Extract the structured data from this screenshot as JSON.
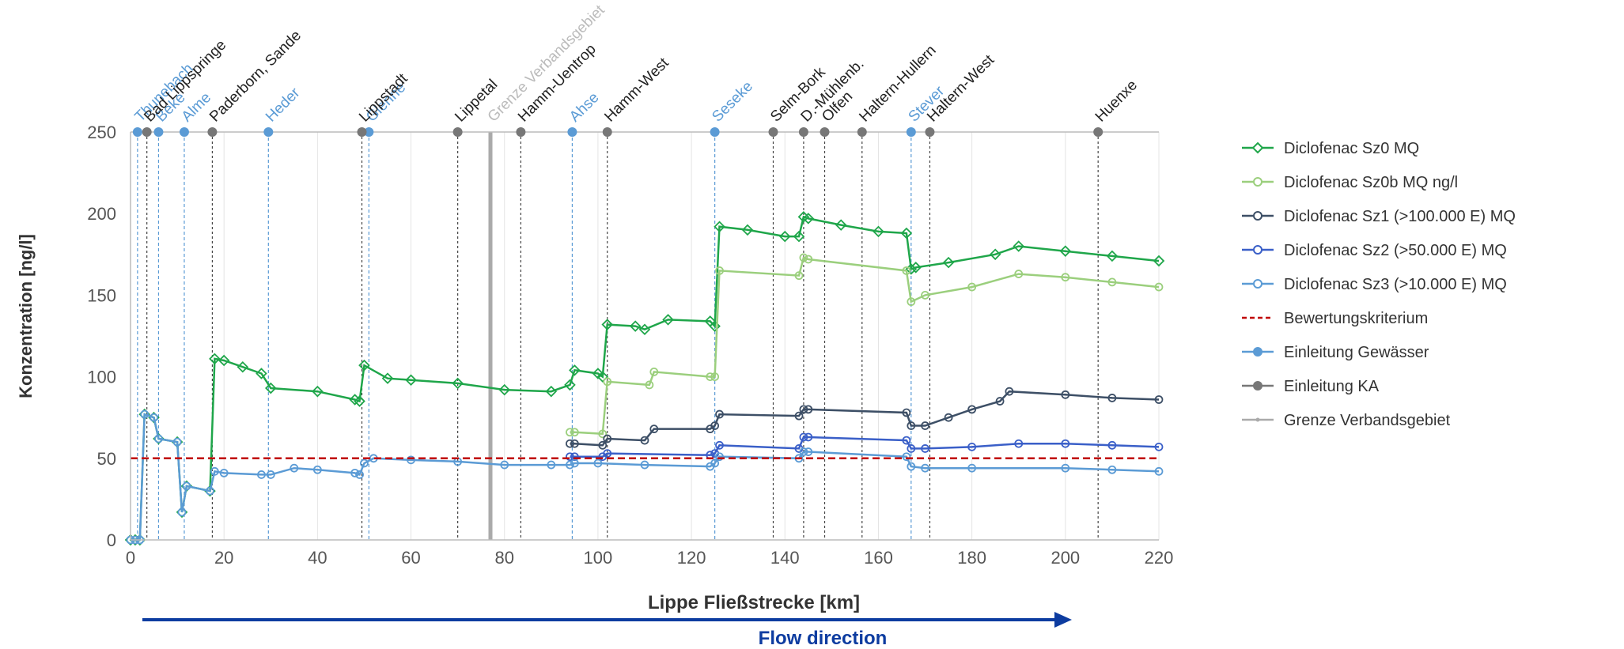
{
  "chart_data": {
    "type": "line",
    "title": "",
    "xlabel": "Lippe Fließstrecke [km]",
    "ylabel": "Konzentration [ng/l]",
    "xlim": [
      0,
      220
    ],
    "ylim": [
      0,
      250
    ],
    "xticks": [
      "0",
      "20",
      "40",
      "60",
      "80",
      "100",
      "120",
      "140",
      "160",
      "180",
      "200",
      "220"
    ],
    "yticks": [
      "0",
      "50",
      "100",
      "150",
      "200",
      "250"
    ],
    "grid": "vertical",
    "legend_position": "right",
    "flow_label": "Flow direction",
    "series": [
      {
        "name": "Diclofenac Sz0 MQ",
        "color": "#1fa64a",
        "x": [
          0,
          1,
          2,
          3,
          5,
          6,
          10,
          11,
          12,
          17,
          18,
          20,
          24,
          28,
          30,
          40,
          48,
          49,
          50,
          55,
          60,
          70,
          80,
          90,
          94,
          95,
          100,
          101,
          102,
          108,
          110,
          115,
          124,
          125,
          126,
          132,
          140,
          143,
          144,
          145,
          152,
          160,
          166,
          167,
          168,
          175,
          185,
          190,
          200,
          210,
          220
        ],
        "y": [
          0,
          0,
          0,
          77,
          75,
          62,
          60,
          17,
          33,
          30,
          111,
          110,
          106,
          102,
          93,
          91,
          86,
          85,
          107,
          99,
          98,
          96,
          92,
          91,
          95,
          104,
          102,
          100,
          132,
          131,
          129,
          135,
          134,
          131,
          192,
          190,
          186,
          186,
          198,
          197,
          193,
          189,
          188,
          166,
          167,
          170,
          175,
          180,
          177,
          174,
          171
        ]
      },
      {
        "name": "Diclofenac Sz0b MQ ng/l",
        "color": "#9bcf7d",
        "x": [
          94,
          95,
          101,
          102,
          111,
          112,
          124,
          125,
          126,
          143,
          144,
          145,
          166,
          167,
          170,
          180,
          190,
          200,
          210,
          220
        ],
        "y": [
          66,
          66,
          65,
          97,
          95,
          103,
          100,
          100,
          165,
          162,
          173,
          172,
          165,
          146,
          150,
          155,
          163,
          161,
          158,
          155
        ]
      },
      {
        "name": "Diclofenac Sz1 (>100.000 E) MQ",
        "color": "#3d4f66",
        "x": [
          94,
          95,
          101,
          102,
          110,
          112,
          124,
          125,
          126,
          143,
          144,
          145,
          166,
          167,
          170,
          175,
          180,
          186,
          188,
          200,
          210,
          220
        ],
        "y": [
          59,
          59,
          58,
          62,
          61,
          68,
          68,
          70,
          77,
          76,
          80,
          80,
          78,
          70,
          70,
          75,
          80,
          85,
          91,
          89,
          87,
          86
        ]
      },
      {
        "name": "Diclofenac Sz2 (>50.000 E) MQ",
        "color": "#3a5fc8",
        "x": [
          94,
          95,
          101,
          102,
          124,
          125,
          126,
          143,
          144,
          145,
          166,
          167,
          170,
          180,
          190,
          200,
          210,
          220
        ],
        "y": [
          51,
          51,
          51,
          53,
          52,
          53,
          58,
          56,
          63,
          63,
          61,
          56,
          56,
          57,
          59,
          59,
          58,
          57
        ]
      },
      {
        "name": "Diclofenac Sz3 (>10.000 E) MQ",
        "color": "#5b9bd5",
        "x": [
          0,
          1,
          2,
          3,
          5,
          6,
          10,
          11,
          12,
          17,
          18,
          20,
          28,
          30,
          35,
          40,
          48,
          49,
          50,
          52,
          60,
          70,
          80,
          90,
          94,
          95,
          100,
          110,
          124,
          125,
          126,
          143,
          144,
          145,
          166,
          167,
          170,
          180,
          200,
          210,
          220
        ],
        "y": [
          0,
          0,
          0,
          77,
          75,
          62,
          60,
          17,
          33,
          30,
          42,
          41,
          40,
          40,
          44,
          43,
          41,
          40,
          47,
          50,
          49,
          48,
          46,
          46,
          46,
          47,
          47,
          46,
          45,
          47,
          51,
          50,
          54,
          54,
          51,
          45,
          44,
          44,
          44,
          43,
          42
        ]
      },
      {
        "name": "Bewertungskriterium",
        "color": "#c00000",
        "x": [
          0,
          220
        ],
        "y": [
          50,
          50
        ]
      },
      {
        "name": "Einleitung Gewässer",
        "color": "#5b9bd5"
      },
      {
        "name": "Einleitung KA",
        "color": "#777777"
      },
      {
        "name": "Grenze Verbandsgebiet",
        "color": "#aaaaaa"
      }
    ],
    "tributaries": [
      {
        "label": "Thunebach",
        "x": 1.5
      },
      {
        "label": "Beke",
        "x": 6
      },
      {
        "label": "Alme",
        "x": 11.5
      },
      {
        "label": "Heder",
        "x": 29.5
      },
      {
        "label": "Glenne",
        "x": 51
      },
      {
        "label": "Ahse",
        "x": 94.5
      },
      {
        "label": "Seseke",
        "x": 125
      },
      {
        "label": "Stever",
        "x": 167
      }
    ],
    "wwtp": [
      {
        "label": "Bad Lippspringe",
        "x": 3.5
      },
      {
        "label": "Paderborn, Sande",
        "x": 17.5
      },
      {
        "label": "Lippstadt",
        "x": 49.5
      },
      {
        "label": "Lippetal",
        "x": 70
      },
      {
        "label": "Hamm-Uentrop",
        "x": 83.5
      },
      {
        "label": "Hamm-West",
        "x": 102
      },
      {
        "label": "Selm-Bork",
        "x": 137.5
      },
      {
        "label": "D.-Mühlenb.",
        "x": 144
      },
      {
        "label": "Olfen",
        "x": 148.5
      },
      {
        "label": "Haltern-Hullern",
        "x": 156.5
      },
      {
        "label": "Haltern-West",
        "x": 171
      },
      {
        "label": "Huenxe",
        "x": 207
      }
    ],
    "boundary": {
      "label": "Grenze Verbandsgebiet",
      "x": 77
    }
  }
}
